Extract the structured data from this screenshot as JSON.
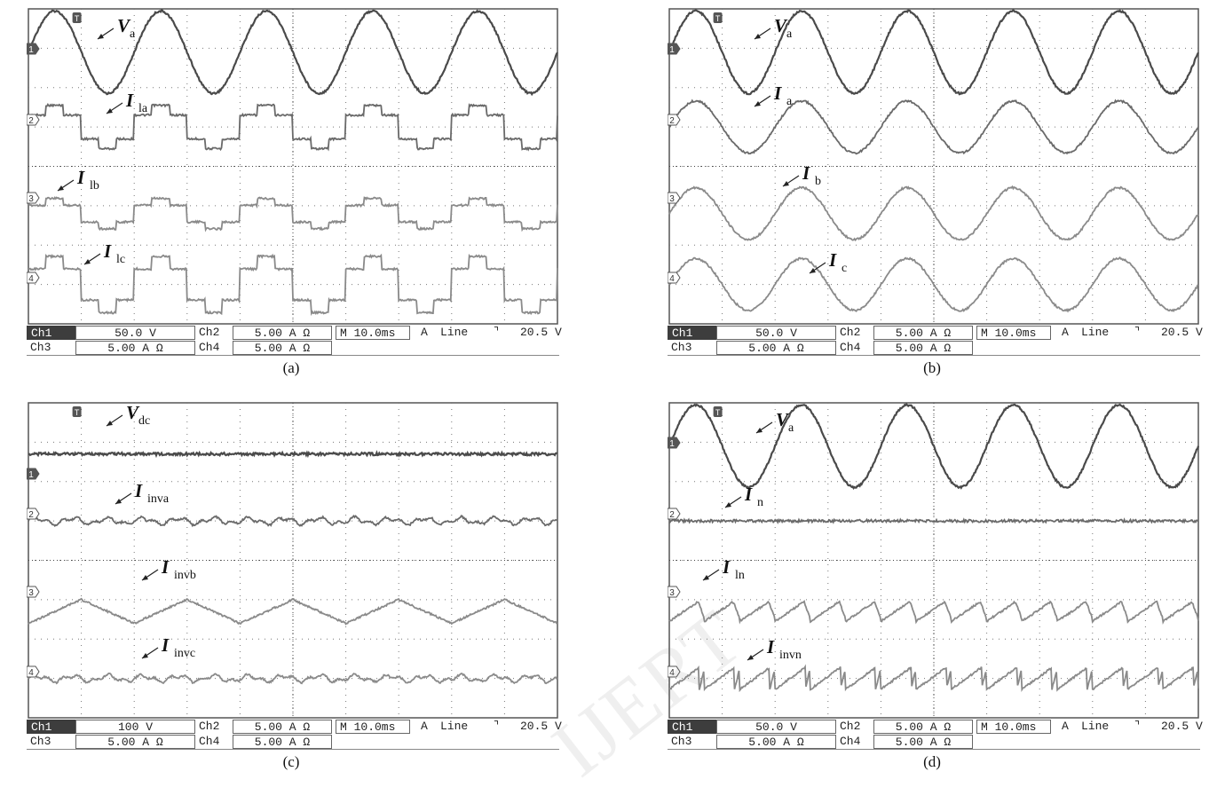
{
  "panels": [
    {
      "id": "a",
      "caption": "(a)",
      "trigger_icon": "trigger-marker-icon",
      "channel_markers": [
        "1",
        "2",
        "3",
        "4"
      ],
      "labels": [
        {
          "main": "V",
          "sub": "a"
        },
        {
          "main": "I",
          "sub": "la"
        },
        {
          "main": "I",
          "sub": "lb"
        },
        {
          "main": "I",
          "sub": "lc"
        }
      ],
      "status": {
        "ch1_name": "Ch1",
        "ch1_value": "50.0 V",
        "ch2_name": "Ch2",
        "ch2_value": "5.00 A Ω",
        "ch3_name": "Ch3",
        "ch3_value": "5.00 A Ω",
        "ch4_name": "Ch4",
        "ch4_value": "5.00 A Ω",
        "timebase": "M 10.0ms",
        "trigger_mode": "A",
        "trigger_source": "Line",
        "trigger_slope": "⌝",
        "trigger_level": "20.5 V"
      }
    },
    {
      "id": "b",
      "caption": "(b)",
      "trigger_icon": "trigger-marker-icon",
      "channel_markers": [
        "1",
        "2",
        "3",
        "4"
      ],
      "labels": [
        {
          "main": "V",
          "sub": "a"
        },
        {
          "main": "I",
          "sub": "a"
        },
        {
          "main": "I",
          "sub": "b"
        },
        {
          "main": "I",
          "sub": "c"
        }
      ],
      "status": {
        "ch1_name": "Ch1",
        "ch1_value": "50.0 V",
        "ch2_name": "Ch2",
        "ch2_value": "5.00 A Ω",
        "ch3_name": "Ch3",
        "ch3_value": "5.00 A Ω",
        "ch4_name": "Ch4",
        "ch4_value": "5.00 A Ω",
        "timebase": "M 10.0ms",
        "trigger_mode": "A",
        "trigger_source": "Line",
        "trigger_slope": "⌝",
        "trigger_level": "20.5 V"
      }
    },
    {
      "id": "c",
      "caption": "(c)",
      "trigger_icon": "trigger-marker-icon",
      "channel_markers": [
        "1",
        "2",
        "3",
        "4"
      ],
      "labels": [
        {
          "main": "V",
          "sub": "dc"
        },
        {
          "main": "I",
          "sub": "inva"
        },
        {
          "main": "I",
          "sub": "invb"
        },
        {
          "main": "I",
          "sub": "invc"
        }
      ],
      "status": {
        "ch1_name": "Ch1",
        "ch1_value": "100 V",
        "ch2_name": "Ch2",
        "ch2_value": "5.00 A Ω",
        "ch3_name": "Ch3",
        "ch3_value": "5.00 A Ω",
        "ch4_name": "Ch4",
        "ch4_value": "5.00 A Ω",
        "timebase": "M 10.0ms",
        "trigger_mode": "A",
        "trigger_source": "Line",
        "trigger_slope": "⌝",
        "trigger_level": "20.5 V"
      }
    },
    {
      "id": "d",
      "caption": "(d)",
      "trigger_icon": "trigger-marker-icon",
      "channel_markers": [
        "1",
        "2",
        "3",
        "4"
      ],
      "labels": [
        {
          "main": "V",
          "sub": "a"
        },
        {
          "main": "I",
          "sub": "n"
        },
        {
          "main": "I",
          "sub": "ln"
        },
        {
          "main": "I",
          "sub": "invn"
        }
      ],
      "status": {
        "ch1_name": "Ch1",
        "ch1_value": "50.0 V",
        "ch2_name": "Ch2",
        "ch2_value": "5.00 A Ω",
        "ch3_name": "Ch3",
        "ch3_value": "5.00 A Ω",
        "ch4_name": "Ch4",
        "ch4_value": "5.00 A Ω",
        "timebase": "M 10.0ms",
        "trigger_mode": "A",
        "trigger_source": "Line",
        "trigger_slope": "⌝",
        "trigger_level": "20.5 V"
      }
    }
  ],
  "watermark": "IJERT",
  "colors": {
    "trace_dark": "#4a4a4a",
    "trace_mid": "#6a6a6a",
    "trace_light": "#8a8a8a",
    "grid": "#777777"
  },
  "chart_data": [
    {
      "type": "line",
      "panel": "a",
      "x_divisions": 10,
      "time_per_division": "10.0ms",
      "series": [
        {
          "name": "Va",
          "shape": "sine",
          "cycles": 5,
          "amplitude_div": 1.9
        },
        {
          "name": "Ila",
          "shape": "six-step",
          "cycles": 5,
          "amplitude_div": 1.0
        },
        {
          "name": "Ilb",
          "shape": "six-step",
          "cycles": 5,
          "amplitude_div": 0.7
        },
        {
          "name": "Ilc",
          "shape": "six-step",
          "cycles": 5,
          "amplitude_div": 1.3
        }
      ]
    },
    {
      "type": "line",
      "panel": "b",
      "x_divisions": 10,
      "time_per_division": "10.0ms",
      "series": [
        {
          "name": "Va",
          "shape": "sine",
          "cycles": 5,
          "amplitude_div": 1.9
        },
        {
          "name": "Ia",
          "shape": "sine",
          "cycles": 5,
          "amplitude_div": 1.2
        },
        {
          "name": "Ib",
          "shape": "sine",
          "cycles": 5,
          "amplitude_div": 1.2
        },
        {
          "name": "Ic",
          "shape": "sine",
          "cycles": 5,
          "amplitude_div": 1.2
        }
      ]
    },
    {
      "type": "line",
      "panel": "c",
      "x_divisions": 10,
      "time_per_division": "10.0ms",
      "series": [
        {
          "name": "Vdc",
          "shape": "dc",
          "amplitude_div": 0
        },
        {
          "name": "Iinva",
          "shape": "ripple",
          "cycles": 15,
          "amplitude_div": 0.2
        },
        {
          "name": "Iinvb",
          "shape": "triangle",
          "cycles": 5,
          "amplitude_div": 0.55
        },
        {
          "name": "Iinvc",
          "shape": "ripple",
          "cycles": 15,
          "amplitude_div": 0.2
        }
      ]
    },
    {
      "type": "line",
      "panel": "d",
      "x_divisions": 10,
      "time_per_division": "10.0ms",
      "series": [
        {
          "name": "Va",
          "shape": "sine",
          "cycles": 5,
          "amplitude_div": 1.9
        },
        {
          "name": "In",
          "shape": "dc",
          "amplitude_div": 0
        },
        {
          "name": "Iln",
          "shape": "sawtooth",
          "cycles": 15,
          "amplitude_div": 0.45
        },
        {
          "name": "Iinvn",
          "shape": "sawtooth-neg",
          "cycles": 15,
          "amplitude_div": 0.5
        }
      ]
    }
  ]
}
